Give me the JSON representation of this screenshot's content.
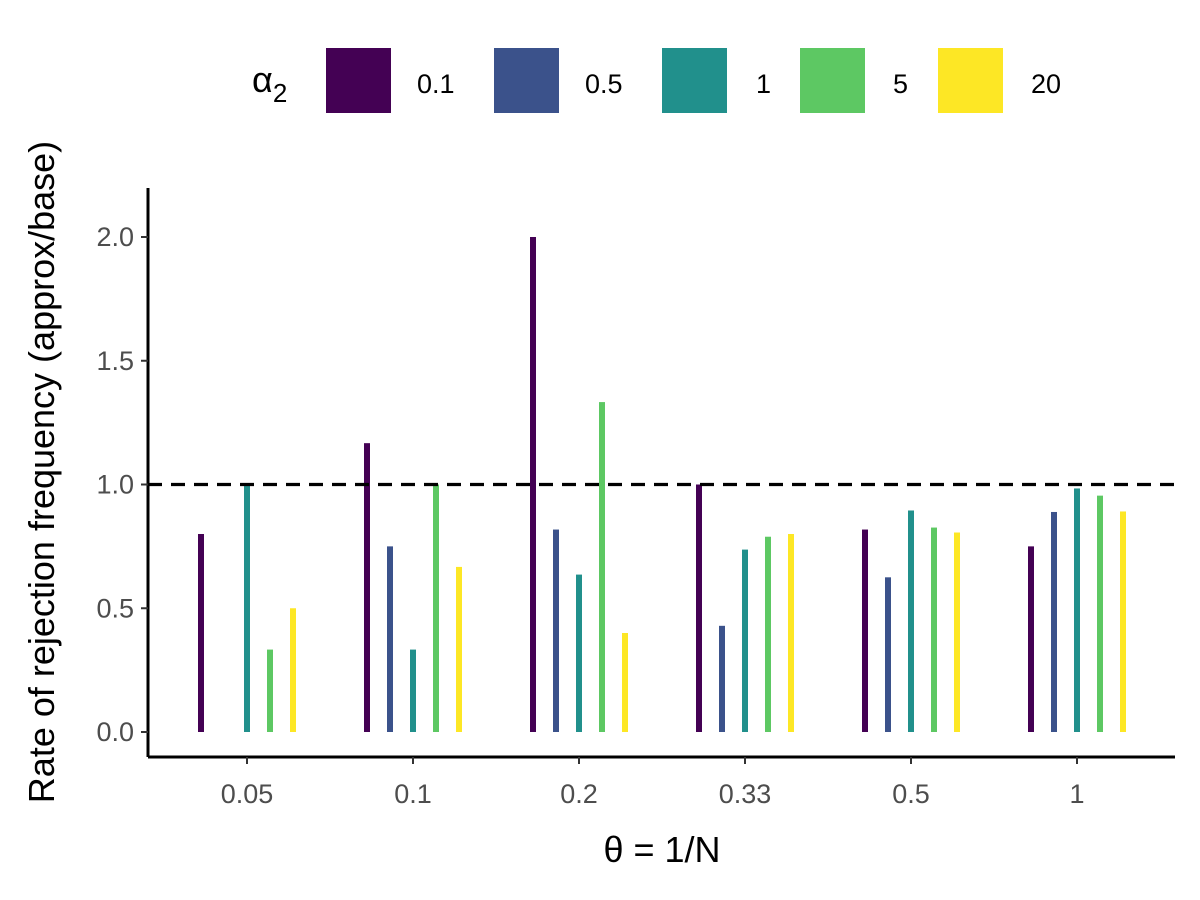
{
  "chart_data": {
    "type": "bar",
    "title": "",
    "xlabel": "θ = 1/N",
    "ylabel": "Rate of rejection frequency (approx/base)",
    "categories": [
      "0.05",
      "0.1",
      "0.2",
      "0.33",
      "0.5",
      "1"
    ],
    "ylim": [
      -0.1,
      2.2
    ],
    "yticks": [
      0.0,
      0.5,
      1.0,
      1.5,
      2.0
    ],
    "ytick_labels": [
      "0.0",
      "0.5",
      "1.0",
      "1.5",
      "2.0"
    ],
    "reference_line": {
      "y": 1.0,
      "style": "dashed",
      "color": "#000000"
    },
    "legend": {
      "title_symbol": "α",
      "title_subscript": "2",
      "position": "top"
    },
    "series": [
      {
        "name": "0.1",
        "color": "#440154",
        "values": [
          0.8,
          1.167,
          2.0,
          1.0,
          0.818,
          0.75
        ]
      },
      {
        "name": "0.5",
        "color": "#3B528B",
        "values": [
          null,
          0.75,
          0.818,
          0.429,
          0.625,
          0.889
        ]
      },
      {
        "name": "1",
        "color": "#21908C",
        "values": [
          1.0,
          0.333,
          0.636,
          0.737,
          0.895,
          0.984
        ]
      },
      {
        "name": "5",
        "color": "#5DC863",
        "values": [
          0.333,
          1.0,
          1.333,
          0.789,
          0.826,
          0.955
        ]
      },
      {
        "name": "20",
        "color": "#FDE725",
        "values": [
          0.5,
          0.667,
          0.4,
          0.8,
          0.806,
          0.891
        ]
      }
    ]
  }
}
